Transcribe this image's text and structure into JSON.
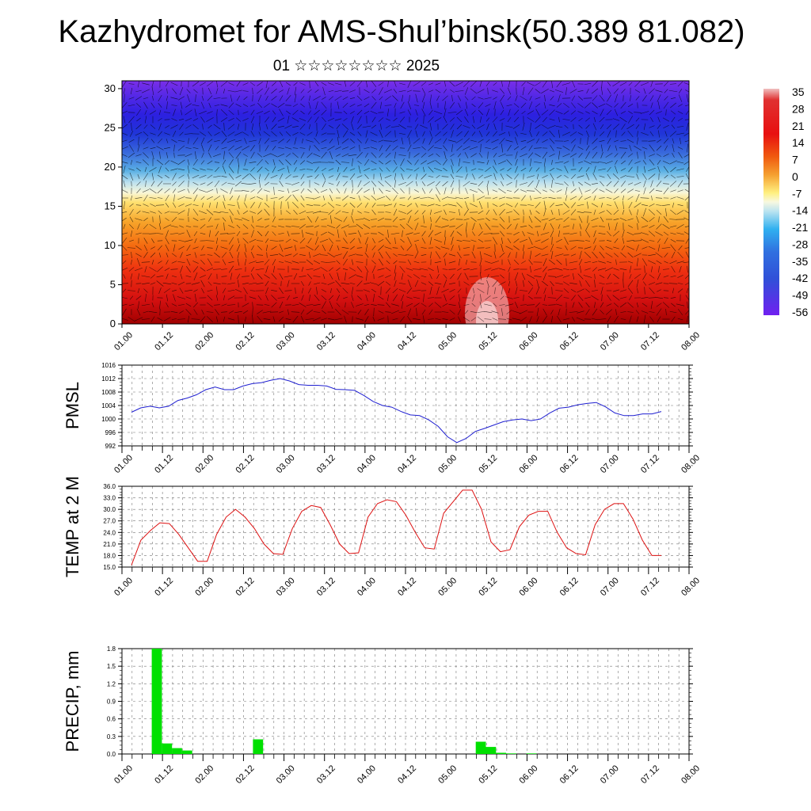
{
  "title": "Kazhydromet for AMS-Shul’binsk(50.389 81.082)",
  "subtitle": "01 ☆☆☆☆☆☆☆☆ 2025",
  "x_ticks": [
    "01.00",
    "01.12",
    "02.00",
    "02.12",
    "03.00",
    "03.12",
    "04.00",
    "04.12",
    "05.00",
    "05.12",
    "06.00",
    "06.12",
    "07.00",
    "07.12",
    "08.00"
  ],
  "chart_data": [
    {
      "type": "heatmap",
      "name": "cross-section",
      "x_categories": [
        "01.00",
        "01.12",
        "02.00",
        "02.12",
        "03.00",
        "03.12",
        "04.00",
        "04.12",
        "05.00",
        "05.12",
        "06.00",
        "06.12",
        "07.00",
        "07.12",
        "08.00"
      ],
      "y_ticks": [
        0,
        5,
        10,
        15,
        20,
        25,
        30
      ],
      "ylim": [
        0,
        31
      ],
      "colorbar_labels": [
        "35",
        "28",
        "21",
        "14",
        "7",
        "0",
        "-7",
        "-14",
        "-21",
        "-28",
        "-35",
        "-42",
        "-49",
        "-56"
      ],
      "overlay": "wind vectors"
    },
    {
      "type": "line",
      "ylabel": "PMSL",
      "ylim": [
        992,
        1016
      ],
      "y_ticks": [
        992,
        996,
        1000,
        1004,
        1008,
        1012,
        1016
      ],
      "color": "#1f1fd0",
      "x_step_hours": 3,
      "values": [
        1002,
        1003.3,
        1003.8,
        1003.3,
        1003.8,
        1005.5,
        1006.2,
        1007.2,
        1008.7,
        1009.5,
        1008.7,
        1008.7,
        1009.8,
        1010.5,
        1010.8,
        1011.5,
        1012,
        1011.3,
        1010.2,
        1010,
        1010,
        1009.8,
        1008.8,
        1008.7,
        1008.5,
        1007,
        1005.2,
        1004,
        1003.5,
        1002.2,
        1001.2,
        1001,
        999.7,
        997.8,
        994.7,
        993,
        994.2,
        996.3,
        997.2,
        998.2,
        999.2,
        999.7,
        1000,
        999.5,
        1000,
        1001.8,
        1003.2,
        1003.5,
        1004.2,
        1004.6,
        1004.9,
        1003.6,
        1001.8,
        1001,
        1001,
        1001.5,
        1001.5,
        1002.2
      ]
    },
    {
      "type": "line",
      "ylabel": "TEMP at 2 M",
      "ylim": [
        15,
        36
      ],
      "y_ticks": [
        "15.0",
        "18.0",
        "21.0",
        "24.0",
        "27.0",
        "30.0",
        "33.0",
        "36.0"
      ],
      "color": "#dd1111",
      "x_step_hours": 3,
      "values": [
        15.5,
        22,
        24.5,
        26.5,
        26.3,
        23.5,
        20,
        16.5,
        16.5,
        23.5,
        28,
        30,
        28,
        25,
        21,
        18.5,
        18.3,
        25,
        29.5,
        31,
        30.5,
        26,
        21,
        18.5,
        18.7,
        28,
        31.5,
        32.5,
        32,
        28.5,
        24,
        20,
        19.7,
        29,
        32,
        35,
        35,
        30,
        21.5,
        19,
        19.5,
        25.5,
        28.5,
        29.5,
        29.5,
        24,
        20,
        18.5,
        18.2,
        26,
        30,
        31.5,
        31.5,
        27.5,
        22,
        18,
        18
      ]
    },
    {
      "type": "bar",
      "ylabel": "PRECIP, mm",
      "ylim": [
        0,
        1.8
      ],
      "y_ticks": [
        "0.0",
        "0.3",
        "0.6",
        "0.9",
        "1.2",
        "1.5",
        "1.8"
      ],
      "color": "#00e000",
      "x_step_hours": 3,
      "values": [
        0,
        0,
        1.8,
        0.18,
        0.1,
        0.06,
        0,
        0,
        0,
        0,
        0,
        0,
        0.25,
        0,
        0,
        0,
        0,
        0,
        0,
        0,
        0,
        0,
        0,
        0,
        0,
        0,
        0,
        0,
        0,
        0,
        0,
        0,
        0,
        0,
        0.21,
        0.12,
        0.02,
        0.01,
        0,
        0.01,
        0,
        0,
        0,
        0,
        0,
        0,
        0,
        0,
        0,
        0,
        0,
        0,
        0,
        0,
        0,
        0
      ]
    }
  ]
}
